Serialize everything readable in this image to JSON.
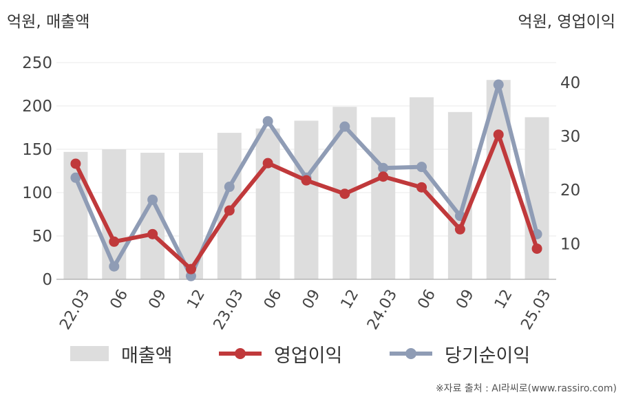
{
  "units": {
    "left": "억원, 매출액",
    "right": "억원, 영업이익"
  },
  "source": "※자료 출처 : AI라씨로(www.rassiro.com)",
  "legend": {
    "revenue": "매출액",
    "op": "영업이익",
    "net": "당기순이익"
  },
  "colors": {
    "revenue": "#dddddd",
    "op": "#c0393b",
    "net": "#8f9cb5",
    "grid": "#e8e8e8",
    "axis": "#aaaaaa"
  },
  "chart_data": {
    "type": "bar",
    "categories": [
      "22.03",
      "06",
      "09",
      "12",
      "23.03",
      "06",
      "09",
      "12",
      "24.03",
      "06",
      "09",
      "12",
      "25.03"
    ],
    "left_axis": {
      "ticks": [
        0,
        50,
        100,
        150,
        200,
        250
      ],
      "ylim": [
        0,
        250
      ]
    },
    "right_axis": {
      "ticks": [
        10,
        20,
        30,
        40
      ],
      "ylim": [
        3.4,
        43.7
      ]
    },
    "series": [
      {
        "name": "매출액",
        "type": "bar",
        "axis": "left",
        "values": [
          147,
          150,
          146,
          146,
          169,
          174,
          183,
          199,
          187,
          210,
          193,
          230,
          187
        ]
      },
      {
        "name": "영업이익",
        "type": "line",
        "axis": "right",
        "values": [
          24.9,
          10.4,
          11.8,
          5.3,
          16.2,
          25.0,
          21.8,
          19.3,
          22.5,
          20.5,
          12.7,
          30.3,
          9.1
        ]
      },
      {
        "name": "당기순이익",
        "type": "line",
        "axis": "right",
        "values": [
          22.3,
          5.8,
          18.2,
          4.0,
          20.6,
          32.8,
          22.3,
          31.8,
          24.1,
          24.3,
          15.2,
          39.6,
          11.8
        ]
      }
    ]
  }
}
